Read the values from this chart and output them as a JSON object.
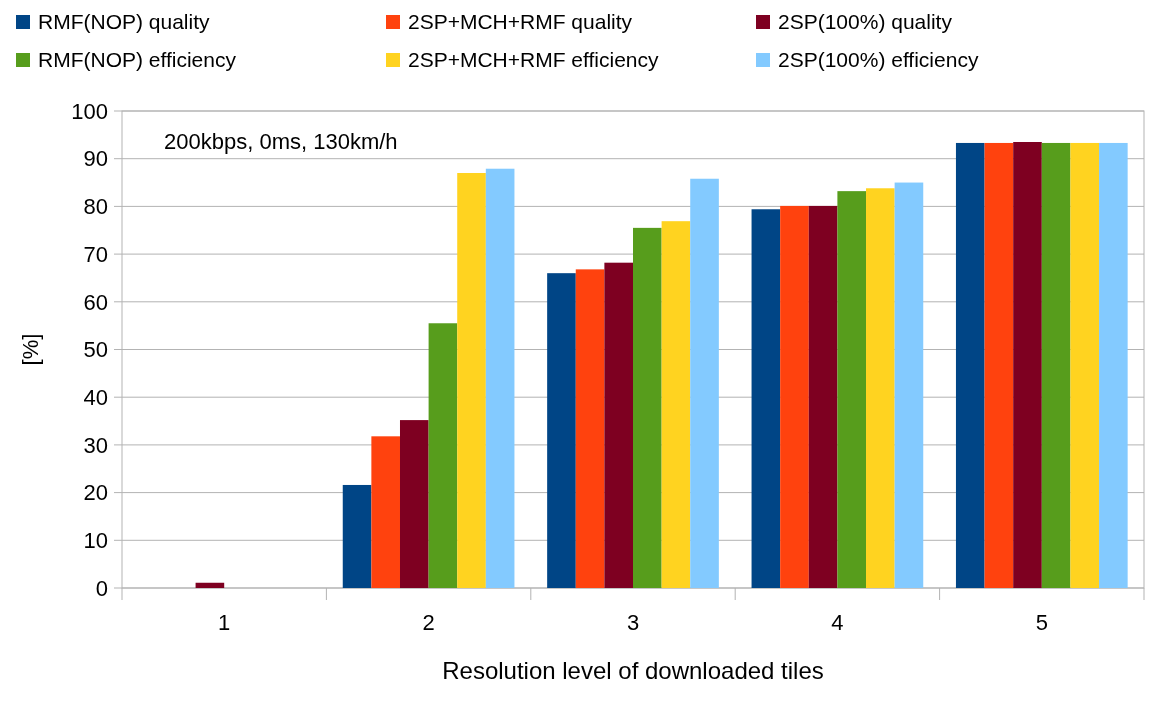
{
  "chart_data": {
    "type": "bar",
    "xlabel": "Resolution level of downloaded tiles",
    "ylabel": "[%]",
    "annotations": [
      "200kbps, 0ms, 130km/h"
    ],
    "categories": [
      "1",
      "2",
      "3",
      "4",
      "5"
    ],
    "series": [
      {
        "name": "RMF(NOP) quality",
        "color": "#004586",
        "values": [
          0,
          21.6,
          66.0,
          79.4,
          93.3
        ]
      },
      {
        "name": "2SP+MCH+RMF quality",
        "color": "#ff420e",
        "values": [
          0,
          31.8,
          66.8,
          80.1,
          93.3
        ]
      },
      {
        "name": "2SP(100%) quality",
        "color": "#7e0021",
        "values": [
          1.1,
          35.2,
          68.2,
          80.1,
          93.5
        ]
      },
      {
        "name": "RMF(NOP) efficiency",
        "color": "#579d1c",
        "values": [
          0,
          55.5,
          75.5,
          83.2,
          93.3
        ]
      },
      {
        "name": "2SP+MCH+RMF efficiency",
        "color": "#ffd320",
        "values": [
          0,
          87.0,
          76.9,
          83.8,
          93.3
        ]
      },
      {
        "name": "2SP(100%) efficiency",
        "color": "#83caff",
        "values": [
          0,
          87.9,
          85.8,
          85.0,
          93.3
        ]
      }
    ],
    "ylim": [
      0,
      100
    ],
    "yticks": [
      0,
      10,
      20,
      30,
      40,
      50,
      60,
      70,
      80,
      90,
      100
    ],
    "grid": "y",
    "legend": "top"
  }
}
